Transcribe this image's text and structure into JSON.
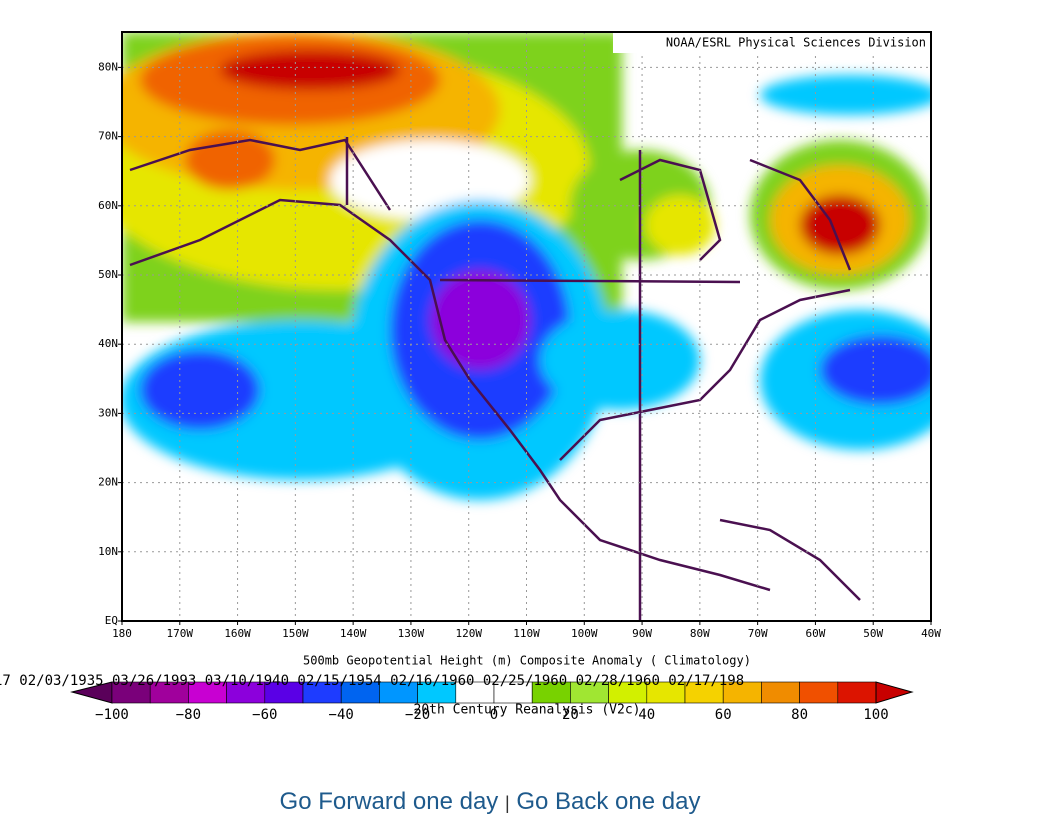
{
  "map": {
    "credit": "NOAA/ESRL Physical Sciences Division",
    "lat_labels": [
      "80N",
      "70N",
      "60N",
      "50N",
      "40N",
      "30N",
      "20N",
      "10N",
      "EQ"
    ],
    "lon_labels": [
      "180",
      "170W",
      "160W",
      "150W",
      "140W",
      "130W",
      "120W",
      "110W",
      "100W",
      "90W",
      "80W",
      "70W",
      "60W",
      "50W",
      "40W"
    ],
    "title": "500mb Geopotential Height (m) Composite Anomaly ( Climatology)",
    "dates": "17 02/03/1935 03/26/1993 03/10/1940 02/15/1954 02/16/1960 02/25/1960 02/28/1960 02/17/198",
    "subtitle": "20th Century Reanalysis (V2c)",
    "colorbar_labels": [
      "−100",
      "−80",
      "−60",
      "−40",
      "−20",
      "0",
      "20",
      "40",
      "60",
      "80",
      "100"
    ]
  },
  "nav": {
    "forward": "Go Forward one day",
    "separator": "|",
    "back": "Go Back one day"
  }
}
